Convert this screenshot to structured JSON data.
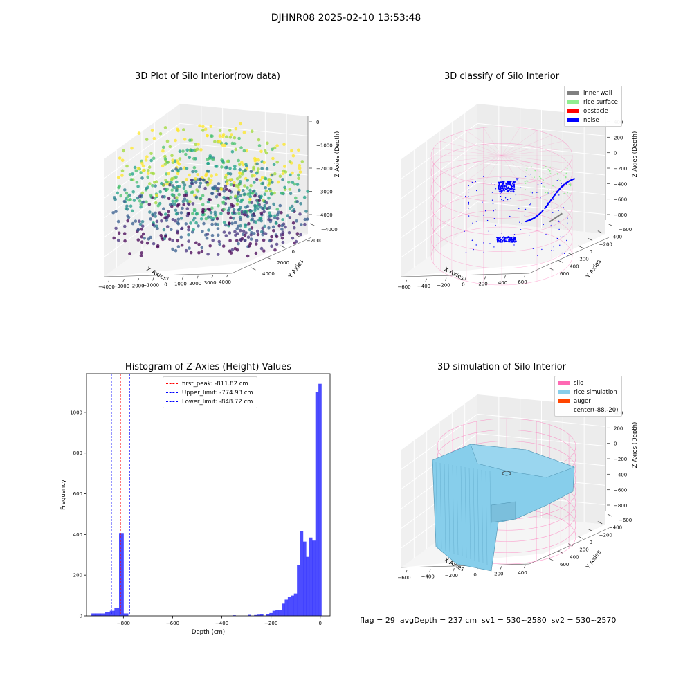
{
  "suptitle": "DJHNR08 2025-02-10 13:53:48",
  "panels": {
    "raw": {
      "title": "3D Plot of Silo Interior(row data)",
      "xlabel": "X Axies",
      "ylabel": "Y Axies",
      "zlabel": "Z Axies (Depth)",
      "xticks": [
        "−4000",
        "−3000",
        "−2000",
        "−1000",
        "0",
        "1000",
        "2000",
        "3000",
        "4000"
      ],
      "yticks": [
        "4000",
        "2000",
        "0",
        "−2000",
        "−4000"
      ],
      "zticks": [
        "0",
        "−1000",
        "−2000",
        "−3000",
        "−4000"
      ]
    },
    "classify": {
      "title": "3D classify of Silo Interior",
      "xlabel": "X Axies",
      "ylabel": "Y Axies",
      "zlabel": "Z Axies (Depth)",
      "xticks": [
        "−600",
        "−400",
        "−200",
        "0",
        "200",
        "400",
        "600"
      ],
      "yticks": [
        "600",
        "400",
        "200",
        "0",
        "−200",
        "−400",
        "−600"
      ],
      "zticks": [
        "400",
        "200",
        "0",
        "−200",
        "−400",
        "−600",
        "−800"
      ],
      "legend": [
        {
          "label": "inner wall",
          "color": "#808080"
        },
        {
          "label": "rice surface",
          "color": "#90ee90"
        },
        {
          "label": "obstacle",
          "color": "#ff0000"
        },
        {
          "label": "noise",
          "color": "#0000ff"
        }
      ]
    },
    "simulation": {
      "title": "3D simulation of Silo Interior",
      "xlabel": "X Axies",
      "ylabel": "Y Axies",
      "zlabel": "Z Axies (Depth)",
      "xticks": [
        "−600",
        "−400",
        "−200",
        "0",
        "200",
        "400"
      ],
      "yticks": [
        "600",
        "400",
        "200",
        "0",
        "−200",
        "−400",
        "−600"
      ],
      "zticks": [
        "400",
        "200",
        "0",
        "−200",
        "−400",
        "−600",
        "−800"
      ],
      "legend": [
        {
          "label": "silo",
          "color": "#ff69b4"
        },
        {
          "label": "rice simulation",
          "color": "#87ceeb"
        },
        {
          "label": "auger",
          "color": "#ff4500"
        },
        {
          "label": "center(-88,-20)",
          "color": ""
        }
      ]
    }
  },
  "footer": "flag = 29  avgDepth = 237 cm  sv1 = 530~2580  sv2 = 530~2570",
  "chart_data": [
    {
      "type": "bar",
      "title": "Histogram of Z-Axies (Height) Values",
      "xlabel": "Depth (cm)",
      "ylabel": "Frequency",
      "xlim": [
        -950,
        40
      ],
      "ylim": [
        0,
        1190
      ],
      "bar_color": "#0000ff",
      "bar_opacity": 0.7,
      "bin_width": 18.7,
      "bin_starts": [
        -930,
        -911.3,
        -892.6,
        -873.9,
        -855.2,
        -836.5,
        -817.8,
        -799.1,
        -780.4,
        -761.7,
        -743,
        -724.3,
        -705.6,
        -686.9,
        -668.2,
        -649.5,
        -630.8,
        -612.1,
        -593.4,
        -574.7,
        -556,
        -537.3,
        -518.6,
        -499.9,
        -481.2,
        -462.5,
        -443.8,
        -425.1,
        -406.4,
        -387.7,
        -369,
        -350.3,
        -331.6,
        -312.9,
        -294.2,
        -275.5,
        -256.8,
        -238.1,
        -219.4,
        -200.7,
        -182,
        -163.3,
        -144.6,
        -125.9,
        -107.2,
        -88.5,
        -69.8,
        -51.1,
        -32.4,
        -13.7
      ],
      "values": [
        12,
        12,
        12,
        18,
        25,
        40,
        407,
        12,
        0,
        0,
        0,
        0,
        0,
        0,
        0,
        0,
        0,
        0,
        0,
        0,
        0,
        0,
        0,
        0,
        0,
        0,
        0,
        0,
        0,
        0,
        0,
        0,
        0,
        0,
        0,
        0,
        0,
        0,
        0,
        0,
        0,
        0,
        0,
        0,
        0,
        0,
        0,
        0,
        0,
        0
      ],
      "values_right": {
        "x_from": -480.5,
        "counts": [
          0,
          0,
          0,
          0,
          0,
          0,
          0,
          0,
          0,
          0,
          3,
          0,
          0,
          0,
          0,
          5,
          0,
          4,
          6,
          10,
          0,
          7,
          14,
          25,
          28,
          30,
          60,
          80,
          95,
          100,
          110,
          250,
          415,
          365,
          290,
          385,
          370,
          1100,
          1140
        ]
      },
      "xticks": [
        -800,
        -600,
        -400,
        -200,
        0
      ],
      "xtick_labels": [
        "−800",
        "−600",
        "−400",
        "−200",
        "0"
      ],
      "yticks": [
        0,
        200,
        400,
        600,
        800,
        1000
      ],
      "vlines": [
        {
          "label": "first_peak: -811.82 cm",
          "x": -811.82,
          "color": "#ff0000"
        },
        {
          "label": "Upper_limit: -774.93 cm",
          "x": -774.93,
          "color": "#0000ff"
        },
        {
          "label": "Lower_limit: -848.72 cm",
          "x": -848.72,
          "color": "#0000ff"
        }
      ]
    }
  ]
}
